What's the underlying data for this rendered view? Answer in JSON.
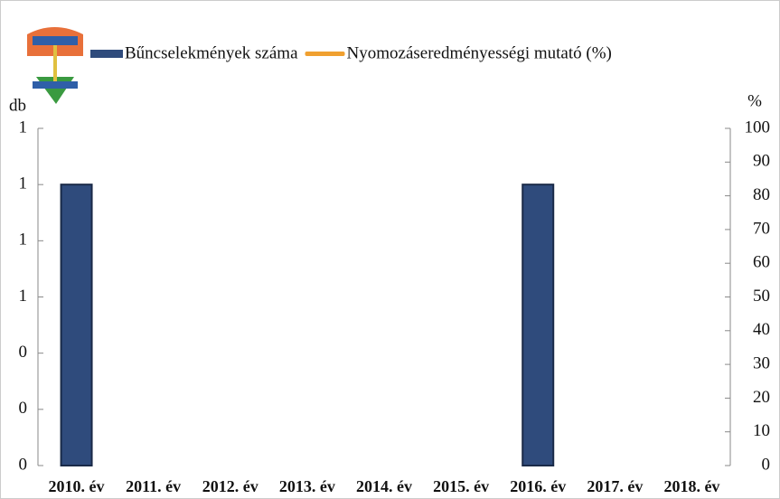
{
  "chart_data": {
    "type": "bar",
    "categories": [
      "2010. év",
      "2011. év",
      "2012. év",
      "2013. év",
      "2014. év",
      "2015. év",
      "2016. év",
      "2017. év",
      "2018. év"
    ],
    "series": [
      {
        "name": "Bűncselekmények száma",
        "color": "#2f4b7c",
        "values": [
          1,
          0,
          0,
          0,
          0,
          0,
          1,
          0,
          0
        ]
      },
      {
        "name": "Nyomozáseredményességi mutató (%)",
        "color": "#f0a030",
        "axis": "y2",
        "values": [
          null,
          null,
          null,
          null,
          null,
          null,
          null,
          null,
          null
        ]
      }
    ],
    "y_label": "db",
    "y2_label": "%",
    "ylim": [
      0,
      1.2
    ],
    "yticks": [
      {
        "value": 0,
        "label": "0"
      },
      {
        "value": 0.2,
        "label": "0"
      },
      {
        "value": 0.4,
        "label": "0"
      },
      {
        "value": 0.6,
        "label": "1"
      },
      {
        "value": 0.8,
        "label": "1"
      },
      {
        "value": 1.0,
        "label": "1"
      },
      {
        "value": 1.2,
        "label": "1"
      }
    ],
    "y2lim": [
      0,
      100
    ],
    "y2ticks": [
      0,
      10,
      20,
      30,
      40,
      50,
      60,
      70,
      80,
      90,
      100
    ],
    "grid": false
  }
}
